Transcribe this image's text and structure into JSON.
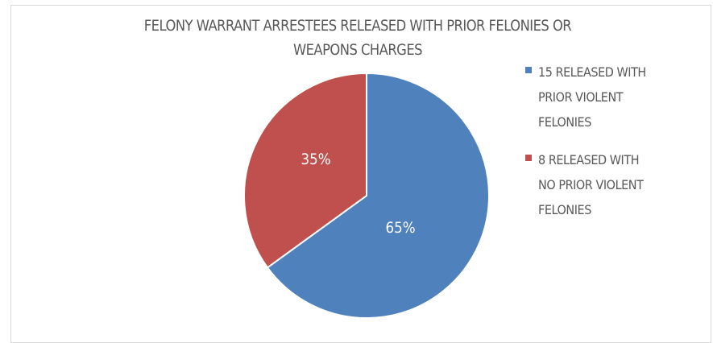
{
  "chart_data": {
    "type": "pie",
    "title_lines": [
      "FELONY WARRANT ARRESTEES RELEASED WITH PRIOR FELONIES OR",
      "WEAPONS CHARGES"
    ],
    "slices": [
      {
        "label": "15 RELEASED WITH PRIOR VIOLENT FELONIES",
        "value": 65,
        "display": "65%",
        "color": "#4f81bd"
      },
      {
        "label": "8 RELEASED WITH NO PRIOR VIOLENT FELONIES",
        "value": 35,
        "display": "35%",
        "color": "#c0504d"
      }
    ],
    "legend_position": "right"
  }
}
